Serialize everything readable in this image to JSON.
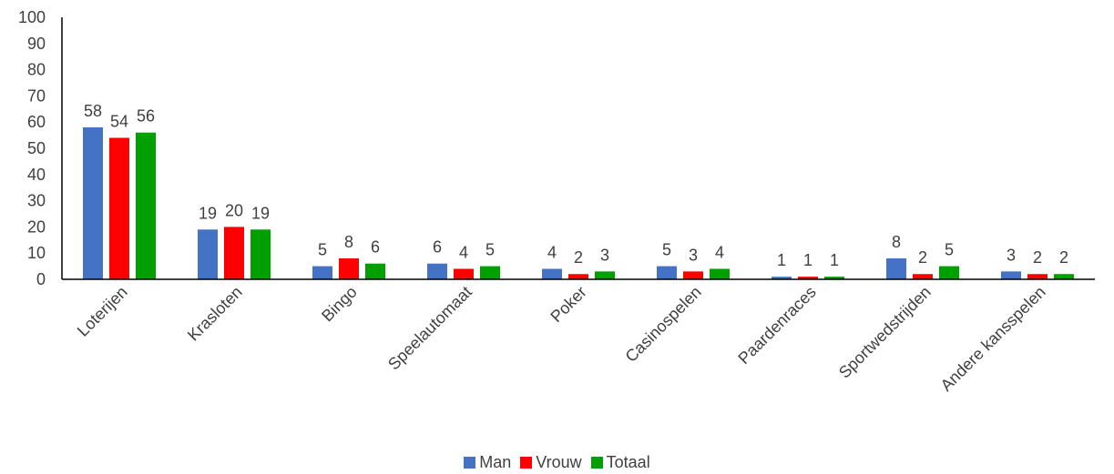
{
  "chart_data": {
    "type": "bar",
    "categories": [
      "Loterijen",
      "Krasloten",
      "Bingo",
      "Speelautomaat",
      "Poker",
      "Casinospelen",
      "Paardenraces",
      "Sportwedstrijden",
      "Andere kansspelen"
    ],
    "series": [
      {
        "name": "Man",
        "color": "#4472C4",
        "values": [
          58,
          19,
          5,
          6,
          4,
          5,
          1,
          8,
          3
        ]
      },
      {
        "name": "Vrouw",
        "color": "#FF0000",
        "values": [
          54,
          20,
          8,
          4,
          2,
          3,
          1,
          2,
          2
        ]
      },
      {
        "name": "Totaal",
        "color": "#00A000",
        "values": [
          56,
          19,
          6,
          5,
          3,
          4,
          1,
          5,
          2
        ]
      }
    ],
    "ylim": [
      0,
      100
    ],
    "yticks": [
      0,
      10,
      20,
      30,
      40,
      50,
      60,
      70,
      80,
      90,
      100
    ],
    "grid": false,
    "legend_position": "bottom"
  }
}
